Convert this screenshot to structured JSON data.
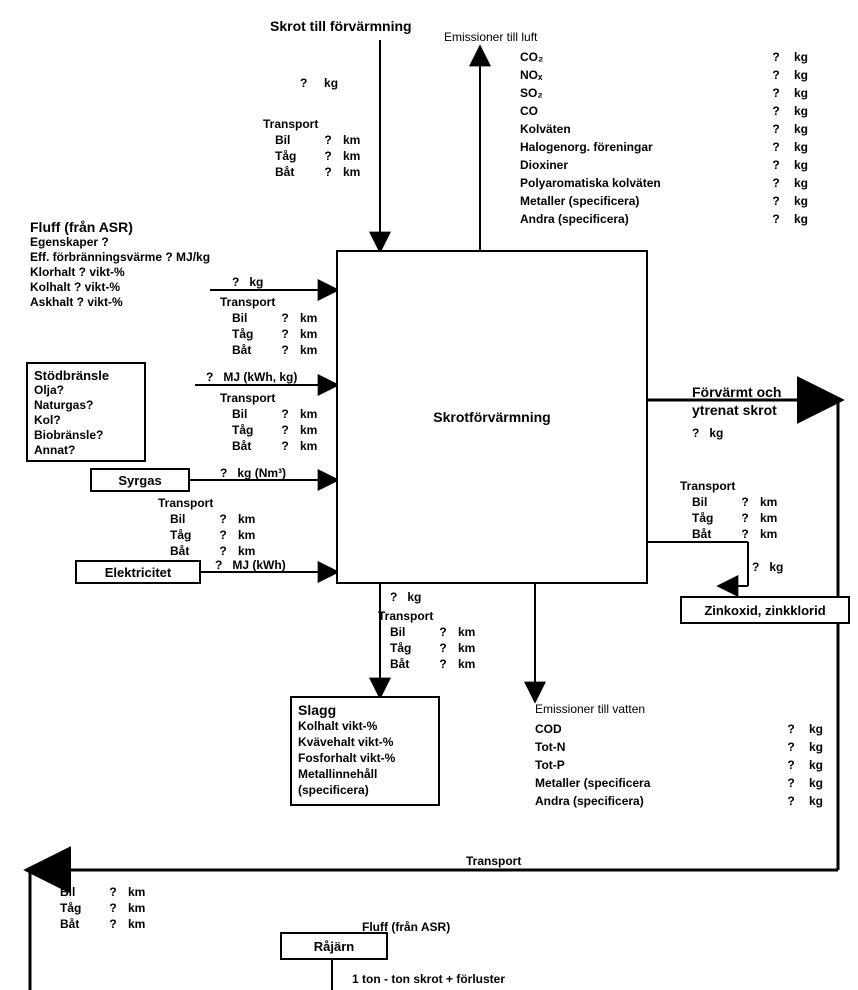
{
  "title": "Skrot till förvärmning",
  "central_box": "Skrotförvärmning",
  "top_input": {
    "value": "?",
    "unit": "kg"
  },
  "transport_modes": [
    "Bil",
    "Tåg",
    "Båt"
  ],
  "transport_label": "Transport",
  "qmark": "?",
  "km": "km",
  "kg": "kg",
  "fluff": {
    "title": "Fluff (från ASR)",
    "lines": [
      "Egenskaper ?",
      "Eff. förbränningsvärme  ? MJ/kg",
      "Klorhalt   ?  vikt-%",
      "Kolhalt   ?  vikt-%",
      "Askhalt   ?  vikt-%"
    ],
    "flow": {
      "value": "?",
      "unit": "kg"
    }
  },
  "stodbransle": {
    "title": "Stödbränsle",
    "lines": [
      "Olja?",
      "Naturgas?",
      "Kol?",
      "Biobränsle?",
      "Annat?"
    ],
    "flow": {
      "value": "?",
      "unit": "MJ (kWh, kg)"
    }
  },
  "syrgas": {
    "title": "Syrgas",
    "flow": {
      "value": "?",
      "unit": "kg (Nm³)"
    }
  },
  "elektricitet": {
    "title": "Elektricitet",
    "flow": {
      "value": "?",
      "unit": "MJ (kWh)"
    }
  },
  "slagg": {
    "title": "Slagg",
    "lines": [
      "Kolhalt     vikt-%",
      "Kvävehalt vikt-%",
      "Fosforhalt vikt-%",
      "Metallinnehåll",
      "(specificera)"
    ],
    "flow": {
      "value": "?",
      "unit": "kg"
    }
  },
  "emissions_air": {
    "title": "Emissioner till luft",
    "rows": [
      {
        "name": "CO₂",
        "q": "?",
        "u": "kg"
      },
      {
        "name": "NOₓ",
        "q": "?",
        "u": "kg"
      },
      {
        "name": "SO₂",
        "q": "?",
        "u": "kg"
      },
      {
        "name": "CO",
        "q": "?",
        "u": "kg"
      },
      {
        "name": "Kolväten",
        "q": "?",
        "u": "kg"
      },
      {
        "name": "Halogenorg. föreningar",
        "q": "?",
        "u": "kg"
      },
      {
        "name": "Dioxiner",
        "q": "?",
        "u": "kg"
      },
      {
        "name": "Polyaromatiska kolväten",
        "q": "?",
        "u": "kg"
      },
      {
        "name": "Metaller (specificera)",
        "q": "?",
        "u": "kg"
      },
      {
        "name": "Andra (specificera)",
        "q": "?",
        "u": "kg"
      }
    ]
  },
  "emissions_water": {
    "title": "Emissioner till vatten",
    "rows": [
      {
        "name": "COD",
        "q": "?",
        "u": "kg"
      },
      {
        "name": "Tot-N",
        "q": "?",
        "u": "kg"
      },
      {
        "name": "Tot-P",
        "q": "?",
        "u": "kg"
      },
      {
        "name": "Metaller (specificera",
        "q": "?",
        "u": "kg"
      },
      {
        "name": "Andra (specificera)",
        "q": "?",
        "u": "kg"
      }
    ]
  },
  "right_output": {
    "title1": "Förvärmt och",
    "title2": "ytrenat skrot",
    "value": "?",
    "unit": "kg"
  },
  "zink": {
    "title": "Zinkoxid, zinkklorid",
    "flow": {
      "value": "?",
      "unit": "kg"
    }
  },
  "rajarn": {
    "title": "Råjärn",
    "line1": "Fluff (från ASR)",
    "line2": "1 ton - ton skrot + förluster"
  },
  "colors": {
    "line": "#000000",
    "fill": "#000000"
  }
}
